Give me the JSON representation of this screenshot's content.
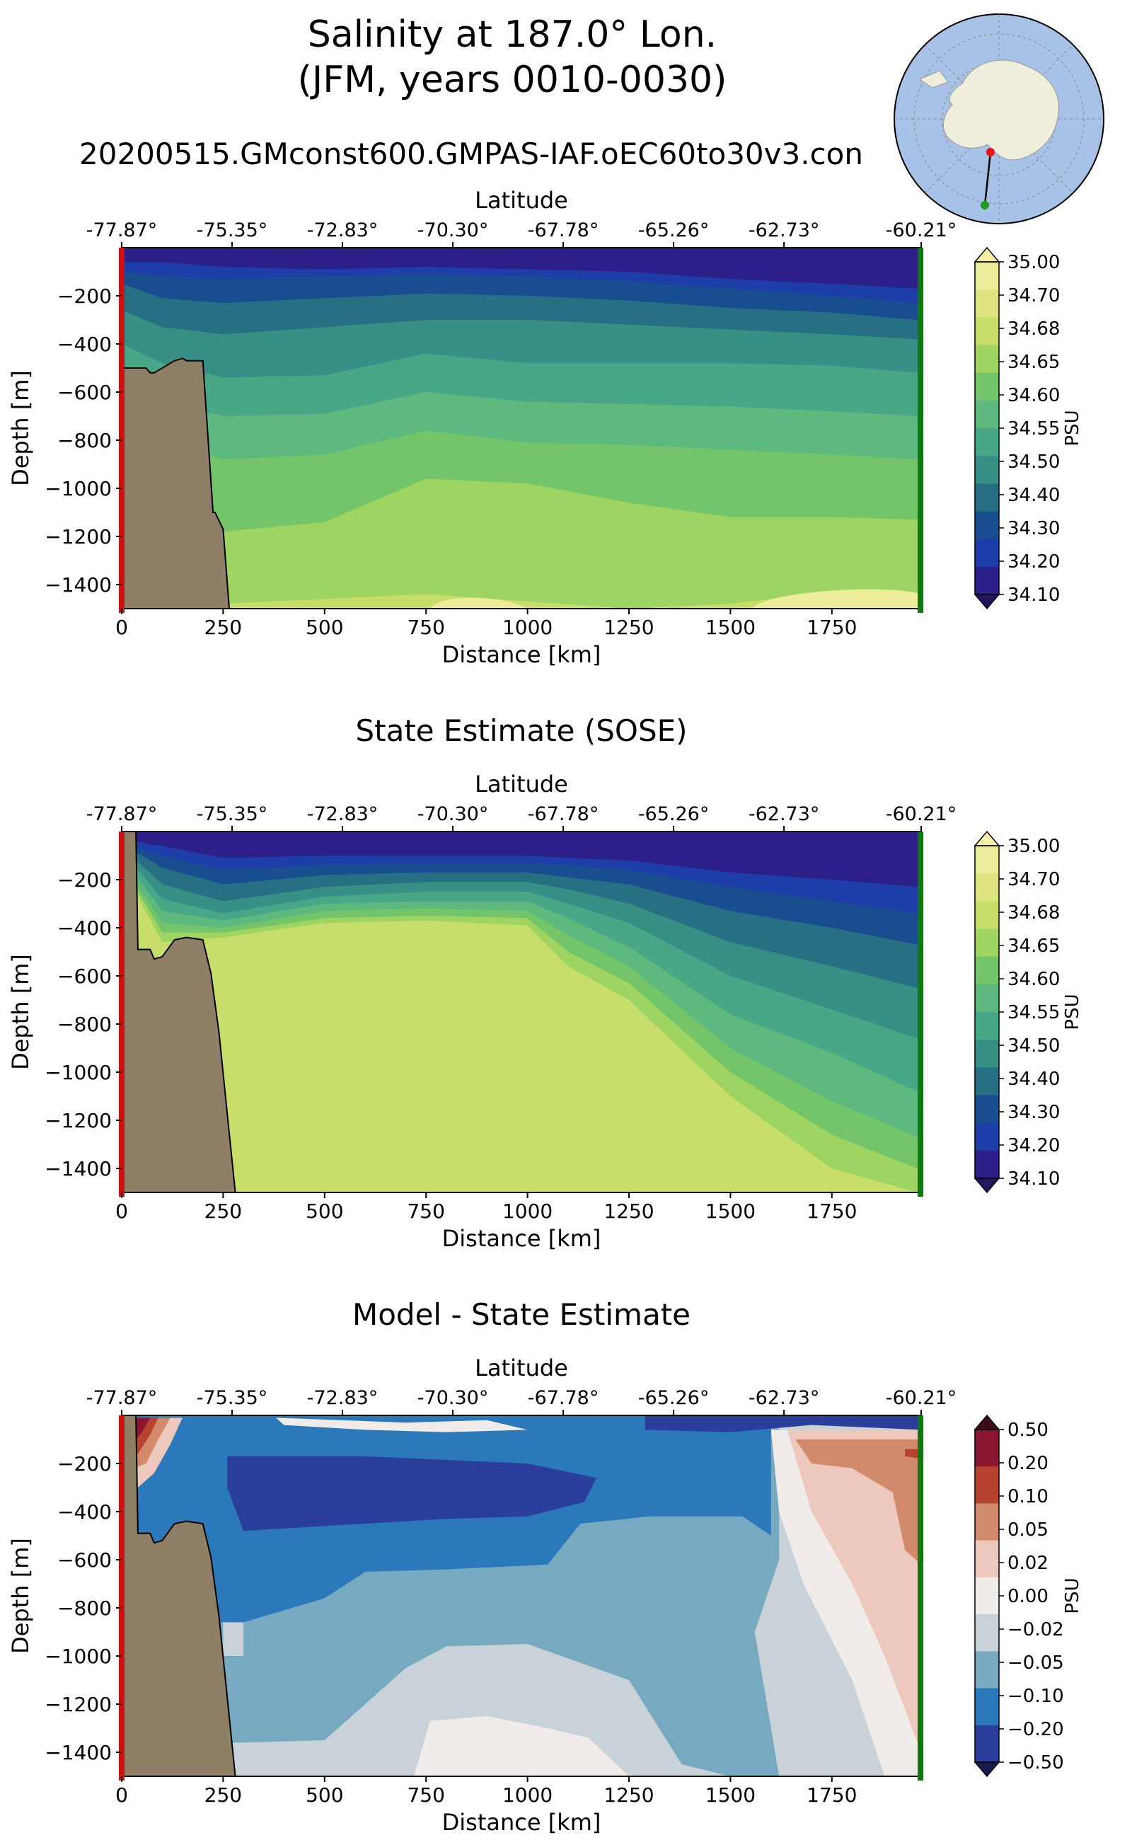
{
  "figure": {
    "title_line1": "Salinity at 187.0° Lon.",
    "title_line2": "(JFM, years 0010-0030)",
    "run_name": "20200515.GMconst600.GMPAS-IAF.oEC60to30v3.con"
  },
  "inset_map": {
    "description_icon": "antarctic-polar-map-icon",
    "transect_start_color": "#e8141b",
    "transect_end_color": "#1f9a1f"
  },
  "colors": {
    "land": "#8f7f67",
    "start_marker": "#cc1111",
    "end_marker": "#117711"
  },
  "colorbars": {
    "salinity": {
      "label": "PSU",
      "ticks": [
        "35.00",
        "34.70",
        "34.68",
        "34.65",
        "34.60",
        "34.55",
        "34.50",
        "34.40",
        "34.30",
        "34.20",
        "34.10"
      ],
      "colors": [
        "#ecec9a",
        "#e0e480",
        "#c8de6a",
        "#9ed462",
        "#74c56a",
        "#5eb97e",
        "#47a786",
        "#388f86",
        "#277084",
        "#184d8f",
        "#1d3ea8",
        "#2c1f8a"
      ],
      "under_color": "#251560",
      "over_color": "#f6f0a8"
    },
    "difference": {
      "label": "PSU",
      "ticks": [
        "0.50",
        "0.20",
        "0.10",
        "0.05",
        "0.02",
        "0.00",
        "−0.02",
        "−0.05",
        "−0.10",
        "−0.20",
        "−0.50"
      ],
      "colors": [
        "#891530",
        "#b5432e",
        "#d28a6c",
        "#ecc9bc",
        "#f1ecea",
        "#c9d2d8",
        "#77a9c0",
        "#2b78bb",
        "#2a3f9b"
      ],
      "under_color": "#1a1a4a",
      "over_color": "#3c0a1c"
    }
  },
  "panels": [
    {
      "title": "",
      "top_axis_label": "Latitude",
      "top_ticks": [
        "-77.87°",
        "-75.35°",
        "-72.83°",
        "-70.30°",
        "-67.78°",
        "-65.26°",
        "-62.73°",
        "-60.21°"
      ],
      "xlabel": "Distance [km]",
      "ylabel": "Depth [m]",
      "x_ticks": [
        "0",
        "250",
        "500",
        "750",
        "1000",
        "1250",
        "1500",
        "1750"
      ],
      "y_ticks": [
        "−200",
        "−400",
        "−600",
        "−800",
        "−1000",
        "−1200",
        "−1400"
      ],
      "colorbar": "salinity"
    },
    {
      "title": "State Estimate (SOSE)",
      "top_axis_label": "Latitude",
      "top_ticks": [
        "-77.87°",
        "-75.35°",
        "-72.83°",
        "-70.30°",
        "-67.78°",
        "-65.26°",
        "-62.73°",
        "-60.21°"
      ],
      "xlabel": "Distance [km]",
      "ylabel": "Depth [m]",
      "x_ticks": [
        "0",
        "250",
        "500",
        "750",
        "1000",
        "1250",
        "1500",
        "1750"
      ],
      "y_ticks": [
        "−200",
        "−400",
        "−600",
        "−800",
        "−1000",
        "−1200",
        "−1400"
      ],
      "colorbar": "salinity"
    },
    {
      "title": "Model - State Estimate",
      "top_axis_label": "Latitude",
      "top_ticks": [
        "-77.87°",
        "-75.35°",
        "-72.83°",
        "-70.30°",
        "-67.78°",
        "-65.26°",
        "-62.73°",
        "-60.21°"
      ],
      "xlabel": "Distance [km]",
      "ylabel": "Depth [m]",
      "x_ticks": [
        "0",
        "250",
        "500",
        "750",
        "1000",
        "1250",
        "1500",
        "1750"
      ],
      "y_ticks": [
        "−200",
        "−400",
        "−600",
        "−800",
        "−1000",
        "−1200",
        "−1400"
      ],
      "colorbar": "difference"
    }
  ],
  "chart_data": [
    {
      "type": "heatmap",
      "title": "Salinity at 187.0° Lon. (JFM, years 0010-0030)",
      "xlabel": "Distance [km]",
      "ylabel": "Depth [m]",
      "xlim": [
        0,
        1970
      ],
      "ylim": [
        -1500,
        0
      ],
      "secondary_xlabel": "Latitude",
      "colorbar_label": "PSU",
      "levels": [
        34.1,
        34.2,
        34.3,
        34.4,
        34.5,
        34.55,
        34.6,
        34.65,
        34.68,
        34.7,
        35.0
      ],
      "contour_depths": {
        "x_km": [
          0,
          100,
          250,
          500,
          750,
          1000,
          1250,
          1500,
          1750,
          1960
        ],
        "34.20": [
          -60,
          -60,
          -80,
          -90,
          -80,
          -90,
          -100,
          -130,
          -150,
          -170
        ],
        "34.30": [
          -100,
          -120,
          -130,
          -120,
          -110,
          -120,
          -140,
          -170,
          -200,
          -230
        ],
        "34.40": [
          -150,
          -210,
          -230,
          -210,
          -190,
          -200,
          -220,
          -250,
          -270,
          -300
        ],
        "34.50": [
          -260,
          -330,
          -360,
          -330,
          -300,
          -300,
          -320,
          -340,
          -360,
          -380
        ],
        "34.55": [
          -400,
          -480,
          -540,
          -530,
          -440,
          -480,
          -480,
          -480,
          -490,
          -520
        ],
        "34.60": [
          -560,
          -640,
          -700,
          -690,
          -600,
          -640,
          -650,
          -660,
          -680,
          -700
        ],
        "34.65": [
          -700,
          -800,
          -880,
          -860,
          -760,
          -810,
          -820,
          -840,
          -860,
          -880
        ],
        "34.68": [
          -1100,
          -1100,
          -1180,
          -1140,
          -960,
          -980,
          -1060,
          -1120,
          -1120,
          -1130
        ],
        "34.70": [
          -1500,
          -1500,
          -1480,
          -1460,
          -1440,
          -1470,
          -1500,
          -1480,
          -1430,
          -1440
        ]
      },
      "bathymetry": {
        "x_km": [
          0,
          40,
          60,
          70,
          80,
          100,
          110,
          130,
          150,
          160,
          180,
          200,
          225,
          230,
          250,
          265
        ],
        "depth_m": [
          -500,
          -500,
          -500,
          -520,
          -520,
          -500,
          -490,
          -470,
          -460,
          -470,
          -470,
          -470,
          -1100,
          -1100,
          -1170,
          -1500
        ]
      }
    },
    {
      "type": "heatmap",
      "title": "State Estimate (SOSE)",
      "xlabel": "Distance [km]",
      "ylabel": "Depth [m]",
      "xlim": [
        0,
        1970
      ],
      "ylim": [
        -1500,
        0
      ],
      "secondary_xlabel": "Latitude",
      "colorbar_label": "PSU",
      "levels": [
        34.1,
        34.2,
        34.3,
        34.4,
        34.5,
        34.55,
        34.6,
        34.65,
        34.68,
        34.7,
        35.0
      ],
      "contour_depths": {
        "x_km": [
          30,
          100,
          250,
          500,
          750,
          1000,
          1100,
          1250,
          1500,
          1750,
          1960
        ],
        "34.20": [
          -40,
          -60,
          -110,
          -100,
          -100,
          -100,
          -110,
          -120,
          -170,
          -200,
          -230
        ],
        "34.30": [
          -60,
          -100,
          -160,
          -140,
          -130,
          -130,
          -140,
          -160,
          -230,
          -290,
          -340
        ],
        "34.40": [
          -80,
          -150,
          -220,
          -180,
          -170,
          -170,
          -190,
          -220,
          -330,
          -400,
          -470
        ],
        "34.50": [
          -110,
          -220,
          -290,
          -230,
          -210,
          -210,
          -240,
          -300,
          -460,
          -560,
          -650
        ],
        "34.55": [
          -140,
          -280,
          -340,
          -270,
          -250,
          -250,
          -300,
          -380,
          -600,
          -740,
          -860
        ],
        "34.60": [
          -170,
          -330,
          -370,
          -300,
          -290,
          -290,
          -360,
          -480,
          -760,
          -920,
          -1080
        ],
        "34.65": [
          -200,
          -380,
          -400,
          -330,
          -320,
          -330,
          -430,
          -560,
          -900,
          -1120,
          -1270
        ],
        "34.68": [
          -220,
          -420,
          -420,
          -360,
          -350,
          -360,
          -500,
          -630,
          -1000,
          -1260,
          -1400
        ],
        "34.70": [
          -240,
          -460,
          -440,
          -380,
          -370,
          -390,
          -560,
          -700,
          -1100,
          -1400,
          -1500
        ]
      },
      "bathymetry": {
        "x_km": [
          0,
          35,
          40,
          70,
          80,
          100,
          130,
          160,
          200,
          220,
          240,
          260,
          280
        ],
        "depth_m": [
          0,
          0,
          -490,
          -490,
          -530,
          -520,
          -450,
          -440,
          -450,
          -590,
          -840,
          -1170,
          -1500
        ]
      }
    },
    {
      "type": "heatmap",
      "title": "Model - State Estimate",
      "xlabel": "Distance [km]",
      "ylabel": "Depth [m]",
      "xlim": [
        0,
        1970
      ],
      "ylim": [
        -1500,
        0
      ],
      "secondary_xlabel": "Latitude",
      "colorbar_label": "PSU",
      "levels": [
        -0.5,
        -0.2,
        -0.1,
        -0.05,
        -0.02,
        0.0,
        0.02,
        0.05,
        0.1,
        0.2,
        0.5
      ],
      "regions": [
        {
          "range": "0.20 to 0.50",
          "location_km": [
            35,
            90
          ],
          "depth_m": [
            -20,
            -200
          ]
        },
        {
          "range": "-0.20 to -0.50",
          "location_km": [
            250,
            1180
          ],
          "depth_m": [
            -160,
            -460
          ]
        },
        {
          "range": "-0.20 to -0.50",
          "location_km": [
            1300,
            1970
          ],
          "depth_m": [
            0,
            -60
          ]
        },
        {
          "range": "-0.10 to -0.20",
          "location_km": [
            150,
            1600
          ],
          "depth_m": [
            -60,
            -860
          ]
        },
        {
          "range": "-0.05 to -0.10",
          "location_km": [
            250,
            1600
          ],
          "depth_m": [
            -860,
            -1450
          ]
        },
        {
          "range": "-0.02 to -0.05",
          "location_km": [
            700,
            1500
          ],
          "depth_m": [
            -900,
            -1500
          ]
        },
        {
          "range": "0.00 to -0.02",
          "location_km": [
            750,
            1300
          ],
          "depth_m": [
            -1250,
            -1500
          ]
        },
        {
          "range": "0.05 to 0.10",
          "location_km": [
            1640,
            1970
          ],
          "depth_m": [
            -120,
            -560
          ]
        },
        {
          "range": "0.02 to 0.05",
          "location_km": [
            1600,
            1970
          ],
          "depth_m": [
            -100,
            -1300
          ]
        }
      ],
      "bathymetry": {
        "x_km": [
          0,
          35,
          40,
          70,
          80,
          100,
          130,
          160,
          200,
          220,
          240,
          260,
          280
        ],
        "depth_m": [
          0,
          0,
          -490,
          -490,
          -530,
          -520,
          -450,
          -440,
          -450,
          -590,
          -840,
          -1170,
          -1500
        ]
      }
    }
  ]
}
